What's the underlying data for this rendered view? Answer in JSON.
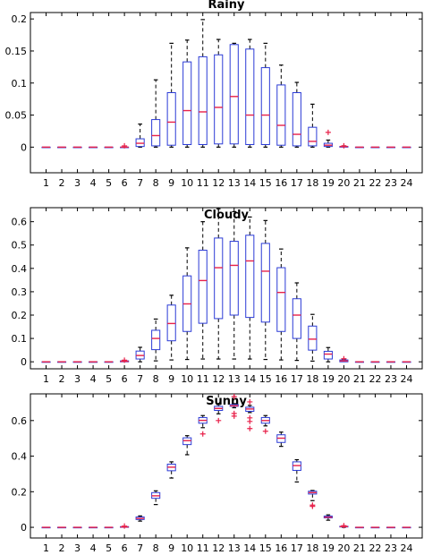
{
  "chart_data": [
    {
      "type": "box",
      "title": "Rainy",
      "categories": [
        "1",
        "2",
        "3",
        "4",
        "5",
        "6",
        "7",
        "8",
        "9",
        "10",
        "11",
        "12",
        "13",
        "14",
        "15",
        "16",
        "17",
        "18",
        "19",
        "20",
        "21",
        "22",
        "23",
        "24"
      ],
      "yticks": [
        0,
        0.05,
        0.1,
        0.15,
        0.2
      ],
      "ytick_labels": [
        "0",
        "0.05",
        "0.1",
        "0.15",
        "0.2"
      ],
      "ylim": [
        -0.04,
        0.21
      ],
      "grid": false,
      "boxes": [
        {
          "x": 1,
          "min": 0,
          "q1": 0,
          "median": 0,
          "q3": 0,
          "max": 0,
          "outliers": []
        },
        {
          "x": 2,
          "min": 0,
          "q1": 0,
          "median": 0,
          "q3": 0,
          "max": 0,
          "outliers": []
        },
        {
          "x": 3,
          "min": 0,
          "q1": 0,
          "median": 0,
          "q3": 0,
          "max": 0,
          "outliers": []
        },
        {
          "x": 4,
          "min": 0,
          "q1": 0,
          "median": 0,
          "q3": 0,
          "max": 0,
          "outliers": []
        },
        {
          "x": 5,
          "min": 0,
          "q1": 0,
          "median": 0,
          "q3": 0,
          "max": 0,
          "outliers": []
        },
        {
          "x": 6,
          "min": 0,
          "q1": 0,
          "median": 0,
          "q3": 0,
          "max": 0,
          "outliers": [
            0.002
          ]
        },
        {
          "x": 7,
          "min": 0,
          "q1": 0.001,
          "median": 0.006,
          "q3": 0.013,
          "max": 0.036,
          "outliers": []
        },
        {
          "x": 8,
          "min": 0,
          "q1": 0.002,
          "median": 0.018,
          "q3": 0.043,
          "max": 0.105,
          "outliers": []
        },
        {
          "x": 9,
          "min": 0,
          "q1": 0.003,
          "median": 0.039,
          "q3": 0.085,
          "max": 0.162,
          "outliers": []
        },
        {
          "x": 10,
          "min": 0,
          "q1": 0.004,
          "median": 0.057,
          "q3": 0.133,
          "max": 0.167,
          "outliers": []
        },
        {
          "x": 11,
          "min": 0,
          "q1": 0.004,
          "median": 0.055,
          "q3": 0.141,
          "max": 0.199,
          "outliers": []
        },
        {
          "x": 12,
          "min": 0,
          "q1": 0.005,
          "median": 0.062,
          "q3": 0.144,
          "max": 0.168,
          "outliers": []
        },
        {
          "x": 13,
          "min": 0,
          "q1": 0.005,
          "median": 0.079,
          "q3": 0.16,
          "max": 0.162,
          "outliers": []
        },
        {
          "x": 14,
          "min": 0,
          "q1": 0.004,
          "median": 0.05,
          "q3": 0.153,
          "max": 0.168,
          "outliers": []
        },
        {
          "x": 15,
          "min": 0,
          "q1": 0.004,
          "median": 0.05,
          "q3": 0.124,
          "max": 0.162,
          "outliers": []
        },
        {
          "x": 16,
          "min": 0,
          "q1": 0.003,
          "median": 0.034,
          "q3": 0.097,
          "max": 0.128,
          "outliers": []
        },
        {
          "x": 17,
          "min": 0,
          "q1": 0.002,
          "median": 0.02,
          "q3": 0.085,
          "max": 0.101,
          "outliers": []
        },
        {
          "x": 18,
          "min": 0,
          "q1": 0.002,
          "median": 0.009,
          "q3": 0.031,
          "max": 0.067,
          "outliers": []
        },
        {
          "x": 19,
          "min": 0,
          "q1": 0.001,
          "median": 0.003,
          "q3": 0.006,
          "max": 0.011,
          "outliers": [
            0.023
          ]
        },
        {
          "x": 20,
          "min": 0,
          "q1": 0,
          "median": 0.001,
          "q3": 0.001,
          "max": 0.002,
          "outliers": [
            0.002
          ]
        },
        {
          "x": 21,
          "min": 0,
          "q1": 0,
          "median": 0,
          "q3": 0,
          "max": 0,
          "outliers": []
        },
        {
          "x": 22,
          "min": 0,
          "q1": 0,
          "median": 0,
          "q3": 0,
          "max": 0,
          "outliers": []
        },
        {
          "x": 23,
          "min": 0,
          "q1": 0,
          "median": 0,
          "q3": 0,
          "max": 0,
          "outliers": []
        },
        {
          "x": 24,
          "min": 0,
          "q1": 0,
          "median": 0,
          "q3": 0,
          "max": 0,
          "outliers": []
        }
      ]
    },
    {
      "type": "box",
      "title": "Cloudy",
      "categories": [
        "1",
        "2",
        "3",
        "4",
        "5",
        "6",
        "7",
        "8",
        "9",
        "10",
        "11",
        "12",
        "13",
        "14",
        "15",
        "16",
        "17",
        "18",
        "19",
        "20",
        "21",
        "22",
        "23",
        "24"
      ],
      "yticks": [
        0,
        0.1,
        0.2,
        0.3,
        0.4,
        0.5,
        0.6
      ],
      "ytick_labels": [
        "0",
        "0.1",
        "0.2",
        "0.3",
        "0.4",
        "0.5",
        "0.6"
      ],
      "ylim": [
        -0.03,
        0.66
      ],
      "grid": false,
      "boxes": [
        {
          "x": 1,
          "min": 0,
          "q1": 0,
          "median": 0,
          "q3": 0,
          "max": 0,
          "outliers": []
        },
        {
          "x": 2,
          "min": 0,
          "q1": 0,
          "median": 0,
          "q3": 0,
          "max": 0,
          "outliers": []
        },
        {
          "x": 3,
          "min": 0,
          "q1": 0,
          "median": 0,
          "q3": 0,
          "max": 0,
          "outliers": []
        },
        {
          "x": 4,
          "min": 0,
          "q1": 0,
          "median": 0,
          "q3": 0,
          "max": 0,
          "outliers": []
        },
        {
          "x": 5,
          "min": 0,
          "q1": 0,
          "median": 0,
          "q3": 0,
          "max": 0,
          "outliers": []
        },
        {
          "x": 6,
          "min": 0,
          "q1": 0,
          "median": 0.002,
          "q3": 0.004,
          "max": 0.006,
          "outliers": [
            0.007
          ]
        },
        {
          "x": 7,
          "min": 0,
          "q1": 0.012,
          "median": 0.027,
          "q3": 0.046,
          "max": 0.062,
          "outliers": []
        },
        {
          "x": 8,
          "min": 0.004,
          "q1": 0.052,
          "median": 0.1,
          "q3": 0.135,
          "max": 0.183,
          "outliers": []
        },
        {
          "x": 9,
          "min": 0.008,
          "q1": 0.09,
          "median": 0.164,
          "q3": 0.243,
          "max": 0.285,
          "outliers": []
        },
        {
          "x": 10,
          "min": 0.01,
          "q1": 0.13,
          "median": 0.248,
          "q3": 0.368,
          "max": 0.488,
          "outliers": []
        },
        {
          "x": 11,
          "min": 0.012,
          "q1": 0.165,
          "median": 0.348,
          "q3": 0.478,
          "max": 0.6,
          "outliers": []
        },
        {
          "x": 12,
          "min": 0.012,
          "q1": 0.185,
          "median": 0.403,
          "q3": 0.53,
          "max": 0.655,
          "outliers": []
        },
        {
          "x": 13,
          "min": 0.012,
          "q1": 0.2,
          "median": 0.413,
          "q3": 0.516,
          "max": 0.643,
          "outliers": []
        },
        {
          "x": 14,
          "min": 0.012,
          "q1": 0.19,
          "median": 0.432,
          "q3": 0.542,
          "max": 0.62,
          "outliers": []
        },
        {
          "x": 15,
          "min": 0.01,
          "q1": 0.17,
          "median": 0.388,
          "q3": 0.507,
          "max": 0.605,
          "outliers": []
        },
        {
          "x": 16,
          "min": 0.008,
          "q1": 0.13,
          "median": 0.297,
          "q3": 0.403,
          "max": 0.483,
          "outliers": []
        },
        {
          "x": 17,
          "min": 0.006,
          "q1": 0.1,
          "median": 0.2,
          "q3": 0.27,
          "max": 0.338,
          "outliers": []
        },
        {
          "x": 18,
          "min": 0.003,
          "q1": 0.05,
          "median": 0.097,
          "q3": 0.153,
          "max": 0.203,
          "outliers": []
        },
        {
          "x": 19,
          "min": 0,
          "q1": 0.012,
          "median": 0.033,
          "q3": 0.045,
          "max": 0.061,
          "outliers": []
        },
        {
          "x": 20,
          "min": 0,
          "q1": 0,
          "median": 0.004,
          "q3": 0.008,
          "max": 0.011,
          "outliers": [
            0.013
          ]
        },
        {
          "x": 21,
          "min": 0,
          "q1": 0,
          "median": 0,
          "q3": 0,
          "max": 0,
          "outliers": []
        },
        {
          "x": 22,
          "min": 0,
          "q1": 0,
          "median": 0,
          "q3": 0,
          "max": 0,
          "outliers": []
        },
        {
          "x": 23,
          "min": 0,
          "q1": 0,
          "median": 0,
          "q3": 0,
          "max": 0,
          "outliers": []
        },
        {
          "x": 24,
          "min": 0,
          "q1": 0,
          "median": 0,
          "q3": 0,
          "max": 0,
          "outliers": []
        }
      ]
    },
    {
      "type": "box",
      "title": "Sunny",
      "categories": [
        "1",
        "2",
        "3",
        "4",
        "5",
        "6",
        "7",
        "8",
        "9",
        "10",
        "11",
        "12",
        "13",
        "14",
        "15",
        "16",
        "17",
        "18",
        "19",
        "20",
        "21",
        "22",
        "23",
        "24"
      ],
      "yticks": [
        0,
        0.2,
        0.4,
        0.6
      ],
      "ytick_labels": [
        "0",
        "0.2",
        "0.4",
        "0.6"
      ],
      "ylim": [
        -0.06,
        0.75
      ],
      "grid": false,
      "boxes": [
        {
          "x": 1,
          "min": 0,
          "q1": 0,
          "median": 0,
          "q3": 0,
          "max": 0,
          "outliers": []
        },
        {
          "x": 2,
          "min": 0,
          "q1": 0,
          "median": 0,
          "q3": 0,
          "max": 0,
          "outliers": []
        },
        {
          "x": 3,
          "min": 0,
          "q1": 0,
          "median": 0,
          "q3": 0,
          "max": 0,
          "outliers": []
        },
        {
          "x": 4,
          "min": 0,
          "q1": 0,
          "median": 0,
          "q3": 0,
          "max": 0,
          "outliers": []
        },
        {
          "x": 5,
          "min": 0,
          "q1": 0,
          "median": 0,
          "q3": 0,
          "max": 0,
          "outliers": []
        },
        {
          "x": 6,
          "min": 0,
          "q1": 0,
          "median": 0.002,
          "q3": 0.004,
          "max": 0.005,
          "outliers": [
            0.007
          ]
        },
        {
          "x": 7,
          "min": 0.035,
          "q1": 0.044,
          "median": 0.05,
          "q3": 0.058,
          "max": 0.064,
          "outliers": []
        },
        {
          "x": 8,
          "min": 0.128,
          "q1": 0.163,
          "median": 0.177,
          "q3": 0.195,
          "max": 0.205,
          "outliers": []
        },
        {
          "x": 9,
          "min": 0.277,
          "q1": 0.318,
          "median": 0.338,
          "q3": 0.355,
          "max": 0.368,
          "outliers": []
        },
        {
          "x": 10,
          "min": 0.408,
          "q1": 0.465,
          "median": 0.487,
          "q3": 0.503,
          "max": 0.515,
          "outliers": []
        },
        {
          "x": 11,
          "min": 0.56,
          "q1": 0.585,
          "median": 0.601,
          "q3": 0.617,
          "max": 0.628,
          "outliers": [
            0.525
          ]
        },
        {
          "x": 12,
          "min": 0.638,
          "q1": 0.657,
          "median": 0.668,
          "q3": 0.68,
          "max": 0.69,
          "outliers": [
            0.6
          ]
        },
        {
          "x": 13,
          "min": 0.672,
          "q1": 0.68,
          "median": 0.683,
          "q3": 0.69,
          "max": 0.695,
          "outliers": [
            0.64,
            0.625,
            0.735
          ]
        },
        {
          "x": 14,
          "min": 0.645,
          "q1": 0.652,
          "median": 0.665,
          "q3": 0.675,
          "max": 0.685,
          "outliers": [
            0.615,
            0.595,
            0.555,
            0.705
          ]
        },
        {
          "x": 15,
          "min": 0.57,
          "q1": 0.585,
          "median": 0.6,
          "q3": 0.617,
          "max": 0.628,
          "outliers": [
            0.54
          ]
        },
        {
          "x": 16,
          "min": 0.455,
          "q1": 0.477,
          "median": 0.501,
          "q3": 0.52,
          "max": 0.535,
          "outliers": []
        },
        {
          "x": 17,
          "min": 0.255,
          "q1": 0.32,
          "median": 0.347,
          "q3": 0.368,
          "max": 0.38,
          "outliers": []
        },
        {
          "x": 18,
          "min": 0.15,
          "q1": 0.187,
          "median": 0.195,
          "q3": 0.203,
          "max": 0.207,
          "outliers": [
            0.125,
            0.118
          ]
        },
        {
          "x": 19,
          "min": 0.04,
          "q1": 0.053,
          "median": 0.057,
          "q3": 0.063,
          "max": 0.07,
          "outliers": []
        },
        {
          "x": 20,
          "min": 0,
          "q1": 0.002,
          "median": 0.004,
          "q3": 0.006,
          "max": 0.007,
          "outliers": [
            0.009
          ]
        },
        {
          "x": 21,
          "min": 0,
          "q1": 0,
          "median": 0,
          "q3": 0,
          "max": 0,
          "outliers": []
        },
        {
          "x": 22,
          "min": 0,
          "q1": 0,
          "median": 0,
          "q3": 0,
          "max": 0,
          "outliers": []
        },
        {
          "x": 23,
          "min": 0,
          "q1": 0,
          "median": 0,
          "q3": 0,
          "max": 0,
          "outliers": []
        },
        {
          "x": 24,
          "min": 0,
          "q1": 0,
          "median": 0,
          "q3": 0,
          "max": 0,
          "outliers": []
        }
      ]
    }
  ],
  "colors": {
    "box": "#2b3bd6",
    "median": "#e8214a",
    "whisker": "#000000",
    "outlier": "#e8214a",
    "axis": "#000000",
    "background": "#ffffff"
  }
}
